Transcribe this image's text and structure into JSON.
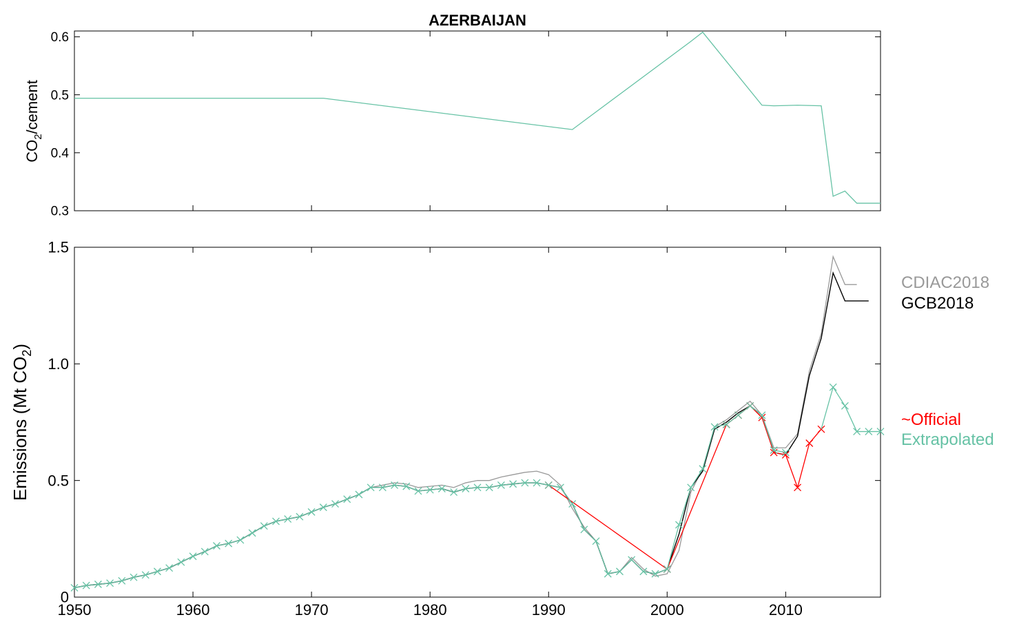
{
  "chart_data": [
    {
      "type": "line",
      "title": "AZERBAIJAN",
      "xlabel": "",
      "ylabel": "CO₂/cement",
      "ylabel_main": "CO",
      "ylabel_sub": "2",
      "ylabel_rest": "/cement",
      "xlim": [
        1950,
        2018
      ],
      "ylim": [
        0.3,
        0.61
      ],
      "yticks": [
        0.3,
        0.4,
        0.5,
        0.6
      ],
      "ytick_labels": [
        "0.3",
        "0.4",
        "0.5",
        "0.6"
      ],
      "xticks": [
        1960,
        1970,
        1980,
        1990,
        2000,
        2010
      ],
      "grid": false,
      "series": [
        {
          "color": "#66c2a5",
          "x": [
            1950,
            1971,
            1992,
            2002,
            2003,
            2008,
            2009,
            2011,
            2013,
            2014,
            2015,
            2016,
            2018
          ],
          "y": [
            0.494,
            0.494,
            0.44,
            0.592,
            0.608,
            0.482,
            0.481,
            0.482,
            0.481,
            0.325,
            0.334,
            0.313,
            0.313
          ]
        }
      ]
    },
    {
      "type": "line",
      "xlabel": "",
      "ylabel": "Emissions (Mt CO₂)",
      "ylabel_main": "Emissions (Mt CO",
      "ylabel_sub": "2",
      "ylabel_rest": ")",
      "xlim": [
        1950,
        2018
      ],
      "ylim": [
        0,
        1.5
      ],
      "yticks": [
        0,
        0.5,
        1.0,
        1.5
      ],
      "ytick_labels": [
        "0",
        "0.5",
        "1.0",
        "1.5"
      ],
      "xticks": [
        1950,
        1960,
        1970,
        1980,
        1990,
        2000,
        2010
      ],
      "xtick_labels": [
        "1950",
        "1960",
        "1970",
        "1980",
        "1990",
        "2000",
        "2010"
      ],
      "grid": false,
      "legend": "right",
      "series": [
        {
          "name": "CDIAC2018",
          "color": "#999999",
          "marker": "none",
          "x": [
            1950,
            1951,
            1952,
            1953,
            1954,
            1955,
            1956,
            1957,
            1958,
            1959,
            1960,
            1961,
            1962,
            1963,
            1964,
            1965,
            1966,
            1967,
            1968,
            1969,
            1970,
            1971,
            1972,
            1973,
            1974,
            1975,
            1976,
            1977,
            1978,
            1979,
            1980,
            1981,
            1982,
            1983,
            1984,
            1985,
            1986,
            1987,
            1988,
            1989,
            1990,
            1991,
            1992,
            1993,
            1994,
            1995,
            1996,
            1997,
            1998,
            1999,
            2000,
            2001,
            2002,
            2003,
            2004,
            2005,
            2006,
            2007,
            2008,
            2009,
            2010,
            2011,
            2012,
            2013,
            2014,
            2015,
            2016
          ],
          "y": [
            0.04,
            0.05,
            0.055,
            0.06,
            0.07,
            0.085,
            0.095,
            0.11,
            0.125,
            0.15,
            0.175,
            0.195,
            0.22,
            0.23,
            0.245,
            0.275,
            0.305,
            0.325,
            0.335,
            0.345,
            0.365,
            0.385,
            0.4,
            0.42,
            0.44,
            0.47,
            0.48,
            0.49,
            0.485,
            0.47,
            0.475,
            0.48,
            0.47,
            0.49,
            0.5,
            0.5,
            0.515,
            0.525,
            0.535,
            0.54,
            0.525,
            0.48,
            0.38,
            0.3,
            0.24,
            0.1,
            0.11,
            0.17,
            0.12,
            0.09,
            0.1,
            0.2,
            0.45,
            0.55,
            0.73,
            0.76,
            0.8,
            0.84,
            0.78,
            0.64,
            0.64,
            0.7,
            0.97,
            1.13,
            1.46,
            1.34,
            1.34
          ]
        },
        {
          "name": "GCB2018",
          "color": "#000000",
          "marker": "none",
          "x": [
            1950,
            1951,
            1952,
            1953,
            1954,
            1955,
            1956,
            1957,
            1958,
            1959,
            1960,
            1961,
            1962,
            1963,
            1964,
            1965,
            1966,
            1967,
            1968,
            1969,
            1970,
            1971,
            1972,
            1973,
            1974,
            1975,
            1976,
            1977,
            1978,
            1979,
            1980,
            1981,
            1982,
            1983,
            1984,
            1985,
            1986,
            1987,
            1988,
            1989,
            1990,
            1991,
            1992,
            1993,
            1994,
            1995,
            1996,
            1997,
            1998,
            1999,
            2000,
            2001,
            2002,
            2003,
            2004,
            2005,
            2006,
            2007,
            2008,
            2009,
            2010,
            2011,
            2012,
            2013,
            2014,
            2015,
            2016,
            2017
          ],
          "y": [
            0.04,
            0.05,
            0.055,
            0.06,
            0.07,
            0.085,
            0.095,
            0.11,
            0.125,
            0.15,
            0.175,
            0.195,
            0.22,
            0.23,
            0.245,
            0.275,
            0.305,
            0.325,
            0.335,
            0.345,
            0.365,
            0.385,
            0.4,
            0.42,
            0.44,
            0.47,
            0.47,
            0.48,
            0.475,
            0.455,
            0.46,
            0.465,
            0.45,
            0.465,
            0.47,
            0.47,
            0.48,
            0.485,
            0.49,
            0.49,
            0.48,
            0.47,
            0.4,
            0.29,
            0.24,
            0.1,
            0.11,
            0.16,
            0.11,
            0.1,
            0.12,
            0.27,
            0.47,
            0.54,
            0.72,
            0.75,
            0.79,
            0.82,
            0.78,
            0.62,
            0.61,
            0.69,
            0.95,
            1.11,
            1.39,
            1.27,
            1.27,
            1.27
          ]
        },
        {
          "name": "~Official",
          "color": "#ff0000",
          "marker": "x",
          "x": [
            1990,
            2000,
            2005,
            2006,
            2007,
            2008,
            2009,
            2010,
            2011,
            2012,
            2013
          ],
          "y": [
            0.48,
            0.12,
            0.74,
            0.78,
            0.82,
            0.77,
            0.62,
            0.61,
            0.47,
            0.66,
            0.72
          ]
        },
        {
          "name": "Extrapolated",
          "color": "#66c2a5",
          "marker": "x",
          "x": [
            1950,
            1951,
            1952,
            1953,
            1954,
            1955,
            1956,
            1957,
            1958,
            1959,
            1960,
            1961,
            1962,
            1963,
            1964,
            1965,
            1966,
            1967,
            1968,
            1969,
            1970,
            1971,
            1972,
            1973,
            1974,
            1975,
            1976,
            1977,
            1978,
            1979,
            1980,
            1981,
            1982,
            1983,
            1984,
            1985,
            1986,
            1987,
            1988,
            1989,
            1990,
            1991,
            1992,
            1993,
            1994,
            1995,
            1996,
            1997,
            1998,
            1999,
            2000,
            2001,
            2002,
            2003,
            2004,
            2005,
            2006,
            2007,
            2008,
            2009,
            2010,
            2011,
            2012,
            2013,
            2014,
            2015,
            2016,
            2017,
            2018
          ],
          "y": [
            0.04,
            0.05,
            0.055,
            0.06,
            0.07,
            0.085,
            0.095,
            0.11,
            0.125,
            0.15,
            0.175,
            0.195,
            0.22,
            0.23,
            0.245,
            0.275,
            0.305,
            0.325,
            0.335,
            0.345,
            0.365,
            0.385,
            0.4,
            0.42,
            0.44,
            0.47,
            0.47,
            0.48,
            0.475,
            0.455,
            0.46,
            0.465,
            0.45,
            0.465,
            0.47,
            0.47,
            0.48,
            0.485,
            0.49,
            0.49,
            0.48,
            0.47,
            0.4,
            0.29,
            0.24,
            0.1,
            0.11,
            0.16,
            0.11,
            0.1,
            0.12,
            0.31,
            0.47,
            0.55,
            0.73,
            0.74,
            0.78,
            0.82,
            0.78,
            0.63,
            0.62,
            null,
            null,
            null,
            0.9,
            0.82,
            0.71,
            0.71,
            0.71
          ],
          "line_x": [
            2013,
            2014,
            2015,
            2016,
            2017,
            2018
          ],
          "line_y": [
            0.72,
            0.9,
            0.82,
            0.71,
            0.71,
            0.71
          ]
        }
      ]
    }
  ]
}
